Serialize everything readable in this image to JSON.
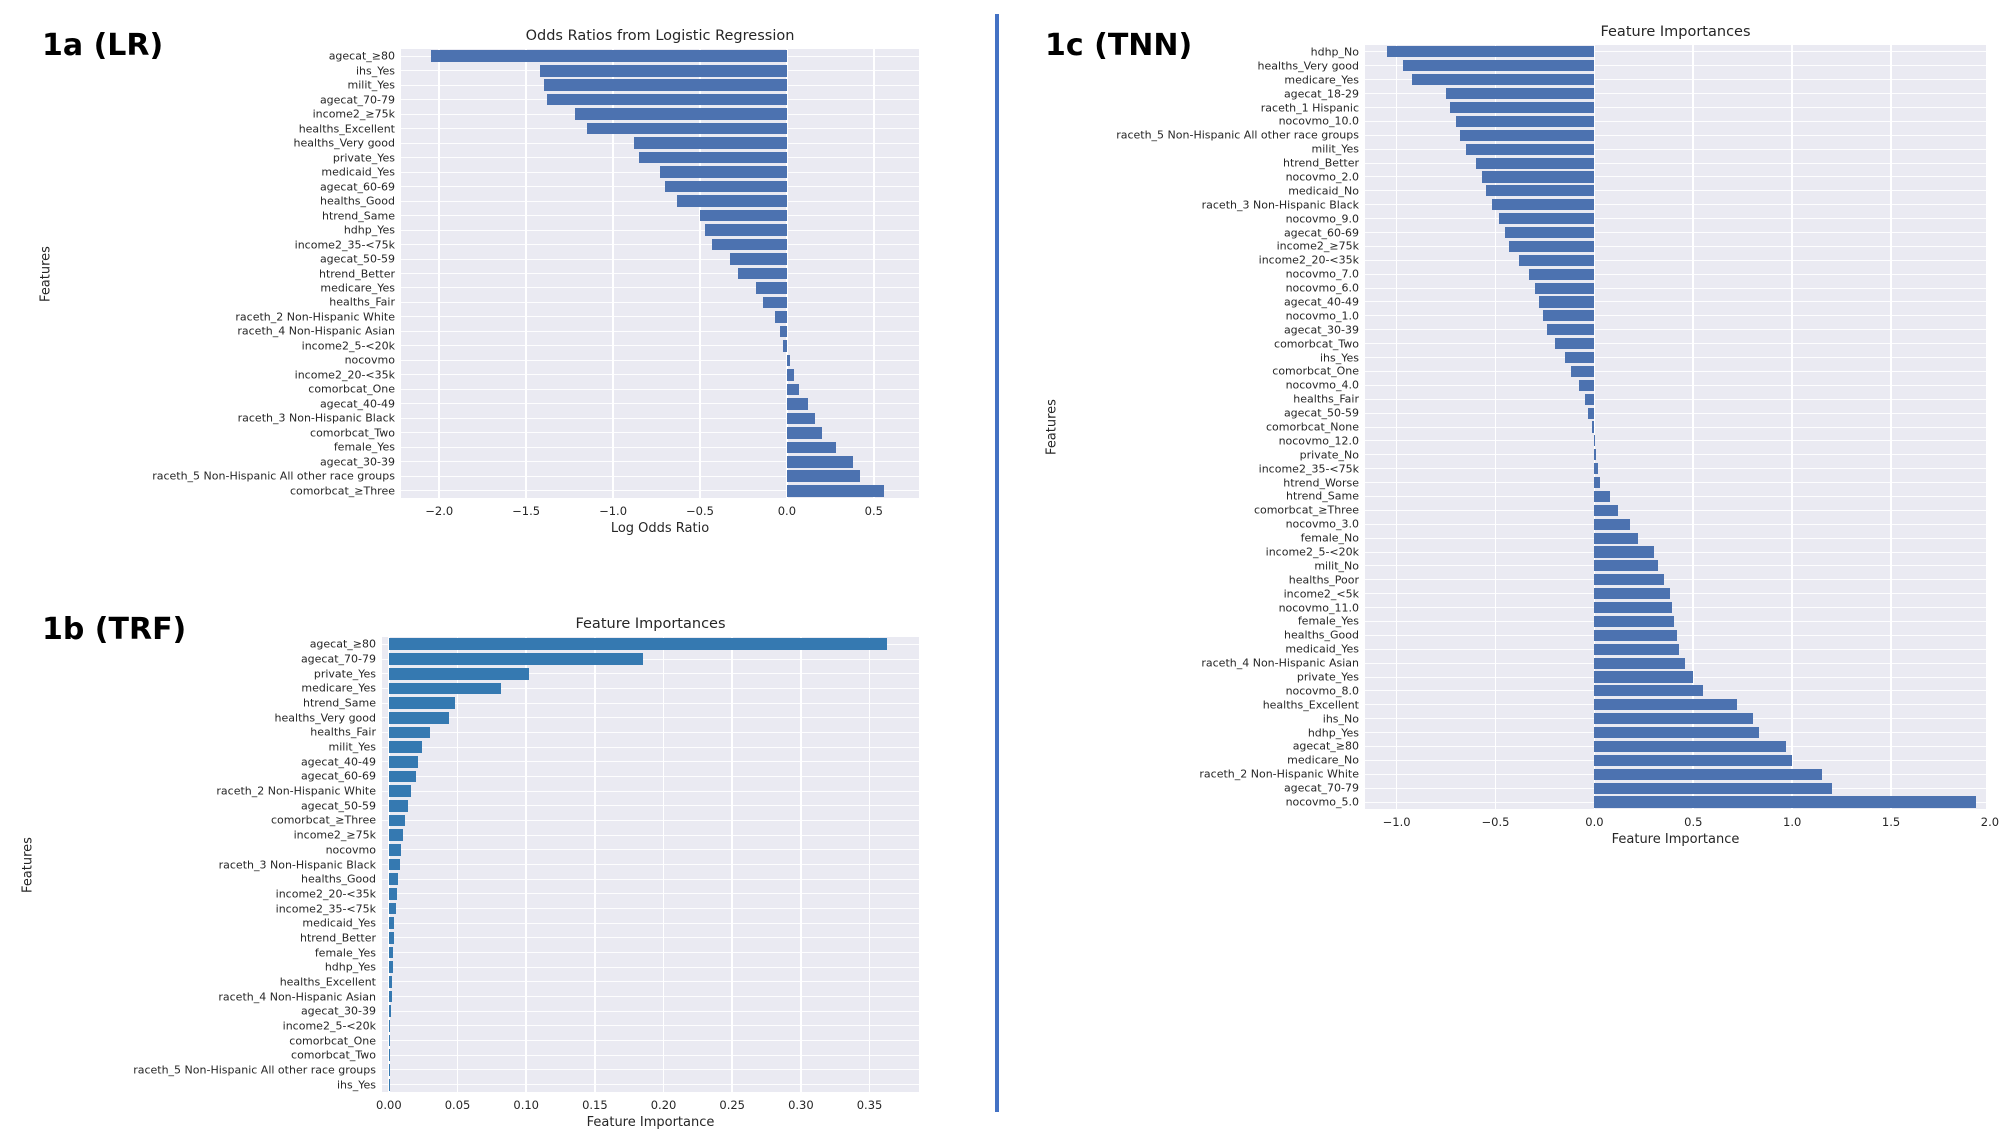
{
  "figure": {
    "background": "#ffffff",
    "plot_background": "#eaeaf2",
    "grid_color": "#ffffff",
    "divider_color": "#4472c4",
    "text_color": "#262626"
  },
  "panels": [
    {
      "label": "1a (LR)"
    },
    {
      "label": "1b (TRF)"
    },
    {
      "label": "1c (TNN)"
    }
  ],
  "chart_data": [
    {
      "type": "bar",
      "orientation": "horizontal",
      "title": "Odds Ratios from Logistic Regression",
      "xlabel": "Log Odds Ratio",
      "ylabel": "Features",
      "bar_color": "#4c72b0",
      "grid": true,
      "legend": "none",
      "xlim": [
        -2.22,
        0.76
      ],
      "xticks": [
        -2.0,
        -1.5,
        -1.0,
        -0.5,
        0.0,
        0.5
      ],
      "xtick_labels": [
        "−2.0",
        "−1.5",
        "−1.0",
        "−0.5",
        "0.0",
        "0.5"
      ],
      "categories": [
        "agecat_≥80",
        "ihs_Yes",
        "milit_Yes",
        "agecat_70-79",
        "income2_≥75k",
        "healths_Excellent",
        "healths_Very good",
        "private_Yes",
        "medicaid_Yes",
        "agecat_60-69",
        "healths_Good",
        "htrend_Same",
        "hdhp_Yes",
        "income2_35-<75k",
        "agecat_50-59",
        "htrend_Better",
        "medicare_Yes",
        "healths_Fair",
        "raceth_2 Non-Hispanic White",
        "raceth_4 Non-Hispanic Asian",
        "income2_5-<20k",
        "nocovmo",
        "income2_20-<35k",
        "comorbcat_One",
        "agecat_40-49",
        "raceth_3 Non-Hispanic Black",
        "comorbcat_Two",
        "female_Yes",
        "agecat_30-39",
        "raceth_5 Non-Hispanic All other race groups",
        "comorbcat_≥Three"
      ],
      "values": [
        -2.05,
        -1.42,
        -1.4,
        -1.38,
        -1.22,
        -1.15,
        -0.88,
        -0.85,
        -0.73,
        -0.7,
        -0.63,
        -0.5,
        -0.47,
        -0.43,
        -0.33,
        -0.28,
        -0.18,
        -0.14,
        -0.07,
        -0.04,
        -0.02,
        0.02,
        0.04,
        0.07,
        0.12,
        0.16,
        0.2,
        0.28,
        0.38,
        0.42,
        0.56
      ]
    },
    {
      "type": "bar",
      "orientation": "horizontal",
      "title": "Feature Importances",
      "xlabel": "Feature Importance",
      "ylabel": "Features",
      "bar_color": "#3579b1",
      "grid": true,
      "legend": "none",
      "xlim": [
        -0.005,
        0.386
      ],
      "xticks": [
        0.0,
        0.05,
        0.1,
        0.15,
        0.2,
        0.25,
        0.3,
        0.35
      ],
      "xtick_labels": [
        "0.00",
        "0.05",
        "0.10",
        "0.15",
        "0.20",
        "0.25",
        "0.30",
        "0.35"
      ],
      "categories": [
        "agecat_≥80",
        "agecat_70-79",
        "private_Yes",
        "medicare_Yes",
        "htrend_Same",
        "healths_Very good",
        "healths_Fair",
        "milit_Yes",
        "agecat_40-49",
        "agecat_60-69",
        "raceth_2 Non-Hispanic White",
        "agecat_50-59",
        "comorbcat_≥Three",
        "income2_≥75k",
        "nocovmo",
        "raceth_3 Non-Hispanic Black",
        "healths_Good",
        "income2_20-<35k",
        "income2_35-<75k",
        "medicaid_Yes",
        "htrend_Better",
        "female_Yes",
        "hdhp_Yes",
        "healths_Excellent",
        "raceth_4 Non-Hispanic Asian",
        "agecat_30-39",
        "income2_5-<20k",
        "comorbcat_One",
        "comorbcat_Two",
        "raceth_5 Non-Hispanic All other race groups",
        "ihs_Yes"
      ],
      "values": [
        0.3625,
        0.185,
        0.102,
        0.082,
        0.048,
        0.044,
        0.03,
        0.024,
        0.021,
        0.02,
        0.016,
        0.014,
        0.012,
        0.01,
        0.009,
        0.008,
        0.007,
        0.006,
        0.005,
        0.004,
        0.004,
        0.003,
        0.003,
        0.002,
        0.002,
        0.0015,
        0.001,
        0.001,
        0.0008,
        0.0005,
        0.0003
      ]
    },
    {
      "type": "bar",
      "orientation": "horizontal",
      "title": "Feature Importances",
      "xlabel": "Feature Importance",
      "ylabel": "Features",
      "bar_color": "#4c72b0",
      "grid": true,
      "legend": "none",
      "xlim": [
        -1.16,
        1.98
      ],
      "xticks": [
        -1.0,
        -0.5,
        0.0,
        0.5,
        1.0,
        1.5,
        2.0
      ],
      "xtick_labels": [
        "−1.0",
        "−0.5",
        "0.0",
        "0.5",
        "1.0",
        "1.5",
        "2.0"
      ],
      "categories": [
        "hdhp_No",
        "healths_Very good",
        "medicare_Yes",
        "agecat_18-29",
        "raceth_1 Hispanic",
        "nocovmo_10.0",
        "raceth_5 Non-Hispanic All other race groups",
        "milit_Yes",
        "htrend_Better",
        "nocovmo_2.0",
        "medicaid_No",
        "raceth_3 Non-Hispanic Black",
        "nocovmo_9.0",
        "agecat_60-69",
        "income2_≥75k",
        "income2_20-<35k",
        "nocovmo_7.0",
        "nocovmo_6.0",
        "agecat_40-49",
        "nocovmo_1.0",
        "agecat_30-39",
        "comorbcat_Two",
        "ihs_Yes",
        "comorbcat_One",
        "nocovmo_4.0",
        "healths_Fair",
        "agecat_50-59",
        "comorbcat_None",
        "nocovmo_12.0",
        "private_No",
        "income2_35-<75k",
        "htrend_Worse",
        "htrend_Same",
        "comorbcat_≥Three",
        "nocovmo_3.0",
        "female_No",
        "income2_5-<20k",
        "milit_No",
        "healths_Poor",
        "income2_<5k",
        "nocovmo_11.0",
        "female_Yes",
        "healths_Good",
        "medicaid_Yes",
        "raceth_4 Non-Hispanic Asian",
        "private_Yes",
        "nocovmo_8.0",
        "healths_Excellent",
        "ihs_No",
        "hdhp_Yes",
        "agecat_≥80",
        "medicare_No",
        "raceth_2 Non-Hispanic White",
        "agecat_70-79",
        "nocovmo_5.0"
      ],
      "values": [
        -1.05,
        -0.97,
        -0.92,
        -0.75,
        -0.73,
        -0.7,
        -0.68,
        -0.65,
        -0.6,
        -0.57,
        -0.55,
        -0.52,
        -0.48,
        -0.45,
        -0.43,
        -0.38,
        -0.33,
        -0.3,
        -0.28,
        -0.26,
        -0.24,
        -0.2,
        -0.15,
        -0.12,
        -0.08,
        -0.05,
        -0.03,
        -0.01,
        0.005,
        0.01,
        0.02,
        0.03,
        0.08,
        0.12,
        0.18,
        0.22,
        0.3,
        0.32,
        0.35,
        0.38,
        0.39,
        0.4,
        0.42,
        0.43,
        0.46,
        0.5,
        0.55,
        0.72,
        0.8,
        0.83,
        0.97,
        1.0,
        1.15,
        1.2,
        1.93
      ]
    }
  ]
}
